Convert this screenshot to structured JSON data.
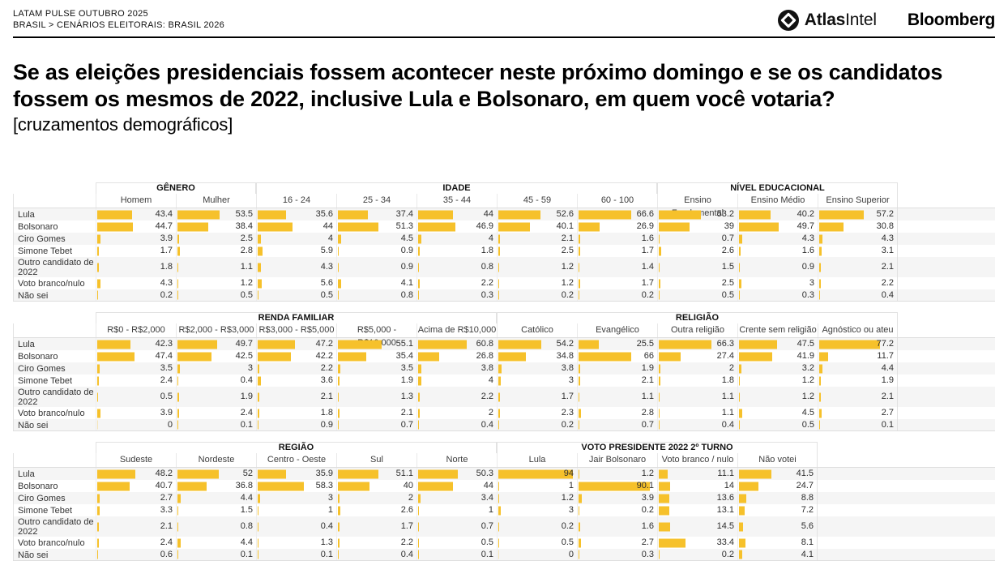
{
  "header": {
    "kicker_line1": "LATAM PULSE OUTUBRO 2025",
    "breadcrumb": "BRASIL > CENÁRIOS ELEITORAIS: BRASIL 2026",
    "logos": {
      "atlas_bold": "Atlas",
      "atlas_regular": "Intel",
      "bloomberg": "Bloomberg"
    }
  },
  "title": {
    "question": "Se as eleições presidenciais fossem acontecer neste próximo domingo e se os candidatos fossem os mesmos de 2022, inclusive Lula e Bolsonaro, em quem você votaria?",
    "subtitle": "[cruzamentos demográficos]"
  },
  "colors": {
    "bar": "#F6C12B",
    "stripe": "#F5F5F5",
    "rule": "#000000"
  },
  "chart_data": [
    {
      "type": "bar-table",
      "groups": [
        {
          "label": "GÊNERO",
          "span": 2
        },
        {
          "label": "IDADE",
          "span": 5
        },
        {
          "label": "NÍVEL EDUCACIONAL",
          "span": 3
        }
      ],
      "categories": [
        "Homem",
        "Mulher",
        "16 - 24",
        "25 - 34",
        "35 - 44",
        "45 - 59",
        "60 - 100",
        "Ensino Fundamental",
        "Ensino Médio",
        "Ensino Superior"
      ],
      "rows": [
        {
          "label": "Lula",
          "values": [
            "43.4",
            "53.5",
            "35.6",
            "37.4",
            "44",
            "52.6",
            "66.6",
            "53.2",
            "40.2",
            "57.2"
          ]
        },
        {
          "label": "Bolsonaro",
          "values": [
            "44.7",
            "38.4",
            "44",
            "51.3",
            "46.9",
            "40.1",
            "26.9",
            "39",
            "49.7",
            "30.8"
          ]
        },
        {
          "label": "Ciro Gomes",
          "values": [
            "3.9",
            "2.5",
            "4",
            "4.5",
            "4",
            "2.1",
            "1.6",
            "0.7",
            "4.3",
            "4.3"
          ]
        },
        {
          "label": "Simone Tebet",
          "values": [
            "1.7",
            "2.8",
            "5.9",
            "0.9",
            "1.8",
            "2.5",
            "1.7",
            "2.6",
            "1.6",
            "3.1"
          ]
        },
        {
          "label": "Outro candidato de 2022",
          "values": [
            "1.8",
            "1.1",
            "4.3",
            "0.9",
            "0.8",
            "1.2",
            "1.4",
            "1.5",
            "0.9",
            "2.1"
          ]
        },
        {
          "label": "Voto branco/nulo",
          "values": [
            "4.3",
            "1.2",
            "5.6",
            "4.1",
            "2.2",
            "1.2",
            "1.7",
            "2.5",
            "3",
            "2.2"
          ]
        },
        {
          "label": "Não sei",
          "values": [
            "0.2",
            "0.5",
            "0.5",
            "0.8",
            "0.3",
            "0.2",
            "0.2",
            "0.5",
            "0.3",
            "0.4"
          ]
        }
      ],
      "value_axis": {
        "min": 0,
        "max": 100,
        "unit": "%"
      }
    },
    {
      "type": "bar-table",
      "groups": [
        {
          "label": "RENDA FAMILIAR",
          "span": 5
        },
        {
          "label": "RELIGIÃO",
          "span": 5
        }
      ],
      "categories": [
        "R$0 - R$2,000",
        "R$2,000 - R$3,000",
        "R$3,000 - R$5,000",
        "R$5,000 - R$10,000",
        "Acima de R$10,000",
        "Católico",
        "Evangélico",
        "Outra religião",
        "Crente sem religião",
        "Agnóstico ou ateu"
      ],
      "rows": [
        {
          "label": "Lula",
          "values": [
            "42.3",
            "49.7",
            "47.2",
            "55.1",
            "60.8",
            "54.2",
            "25.5",
            "66.3",
            "47.5",
            "77.2"
          ]
        },
        {
          "label": "Bolsonaro",
          "values": [
            "47.4",
            "42.5",
            "42.2",
            "35.4",
            "26.8",
            "34.8",
            "66",
            "27.4",
            "41.9",
            "11.7"
          ]
        },
        {
          "label": "Ciro Gomes",
          "values": [
            "3.5",
            "3",
            "2.2",
            "3.5",
            "3.8",
            "3.8",
            "1.9",
            "2",
            "3.2",
            "4.4"
          ]
        },
        {
          "label": "Simone Tebet",
          "values": [
            "2.4",
            "0.4",
            "3.6",
            "1.9",
            "4",
            "3",
            "2.1",
            "1.8",
            "1.2",
            "1.9"
          ]
        },
        {
          "label": "Outro candidato de 2022",
          "values": [
            "0.5",
            "1.9",
            "2.1",
            "1.3",
            "2.2",
            "1.7",
            "1.1",
            "1.1",
            "1.2",
            "2.1"
          ]
        },
        {
          "label": "Voto branco/nulo",
          "values": [
            "3.9",
            "2.4",
            "1.8",
            "2.1",
            "2",
            "2.3",
            "2.8",
            "1.1",
            "4.5",
            "2.7"
          ]
        },
        {
          "label": "Não sei",
          "values": [
            "0",
            "0.1",
            "0.9",
            "0.7",
            "0.4",
            "0.2",
            "0.7",
            "0.4",
            "0.5",
            "0.1"
          ]
        }
      ],
      "value_axis": {
        "min": 0,
        "max": 100,
        "unit": "%"
      }
    },
    {
      "type": "bar-table",
      "groups": [
        {
          "label": "REGIÃO",
          "span": 5
        },
        {
          "label": "VOTO PRESIDENTE 2022 2º TURNO",
          "span": 4
        }
      ],
      "categories": [
        "Sudeste",
        "Nordeste",
        "Centro - Oeste",
        "Sul",
        "Norte",
        "Lula",
        "Jair Bolsonaro",
        "Voto branco / nulo",
        "Não votei"
      ],
      "rows": [
        {
          "label": "Lula",
          "values": [
            "48.2",
            "52",
            "35.9",
            "51.1",
            "50.3",
            "94",
            "1.2",
            "11.1",
            "41.5"
          ]
        },
        {
          "label": "Bolsonaro",
          "values": [
            "40.7",
            "36.8",
            "58.3",
            "40",
            "44",
            "1",
            "90.1",
            "14",
            "24.7"
          ]
        },
        {
          "label": "Ciro Gomes",
          "values": [
            "2.7",
            "4.4",
            "3",
            "2",
            "3.4",
            "1.2",
            "3.9",
            "13.6",
            "8.8"
          ]
        },
        {
          "label": "Simone Tebet",
          "values": [
            "3.3",
            "1.5",
            "1",
            "2.6",
            "1",
            "3",
            "0.2",
            "13.1",
            "7.2"
          ]
        },
        {
          "label": "Outro candidato de 2022",
          "values": [
            "2.1",
            "0.8",
            "0.4",
            "1.7",
            "0.7",
            "0.2",
            "1.6",
            "14.5",
            "5.6"
          ]
        },
        {
          "label": "Voto branco/nulo",
          "values": [
            "2.4",
            "4.4",
            "1.3",
            "2.2",
            "0.5",
            "0.5",
            "2.7",
            "33.4",
            "8.1"
          ]
        },
        {
          "label": "Não sei",
          "values": [
            "0.6",
            "0.1",
            "0.1",
            "0.4",
            "0.1",
            "0",
            "0.3",
            "0.2",
            "4.1"
          ]
        }
      ],
      "value_axis": {
        "min": 0,
        "max": 100,
        "unit": "%"
      }
    }
  ]
}
